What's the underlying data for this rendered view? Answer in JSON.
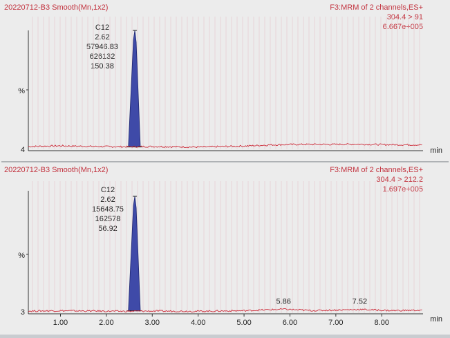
{
  "chart_data": [
    {
      "type": "line",
      "title": "20220712-B3 Smooth(Mn,1x2)",
      "channel": "F3:MRM of 2 channels,ES+",
      "transition": "304.4 > 91",
      "intensity": "6.667e+005",
      "ylabel": "%",
      "y_baseline_label": "4",
      "xlabel": "min",
      "xlim": [
        0.3,
        8.9
      ],
      "ylim": [
        0,
        100
      ],
      "peak": {
        "name": "C12",
        "rt": "2.62",
        "height": "57946.83",
        "area": "626132",
        "sn": "150.38",
        "x_start": 2.48,
        "x_apex": 2.62,
        "x_end": 2.74,
        "y_apex": 100
      },
      "baseline_points": [
        [
          0.3,
          1.2
        ],
        [
          1.0,
          1.8
        ],
        [
          1.8,
          1.2
        ],
        [
          2.4,
          1.0
        ],
        [
          3.0,
          1.2
        ],
        [
          4.0,
          0.7
        ],
        [
          5.0,
          1.6
        ],
        [
          5.6,
          2.6
        ],
        [
          6.2,
          3.0
        ],
        [
          7.0,
          3.0
        ],
        [
          7.5,
          3.2
        ],
        [
          8.0,
          2.8
        ],
        [
          8.9,
          2.6
        ]
      ],
      "extra_labels": [],
      "series_color": "#cc2a38",
      "peak_fill": "#3f4aa8"
    },
    {
      "type": "line",
      "title": "20220712-B3 Smooth(Mn,1x2)",
      "channel": "F3:MRM of 2 channels,ES+",
      "transition": "304.4 > 212.2",
      "intensity": "1.697e+005",
      "ylabel": "%",
      "y_baseline_label": "3",
      "xlabel": "min",
      "xlim": [
        0.3,
        8.9
      ],
      "ylim": [
        0,
        100
      ],
      "peak": {
        "name": "C12",
        "rt": "2.62",
        "height": "15648.75",
        "area": "162578",
        "sn": "56.92",
        "x_start": 2.48,
        "x_apex": 2.62,
        "x_end": 2.74,
        "y_apex": 100
      },
      "baseline_points": [
        [
          0.3,
          0.6
        ],
        [
          1.0,
          0.9
        ],
        [
          2.0,
          0.5
        ],
        [
          2.4,
          0.4
        ],
        [
          3.0,
          0.6
        ],
        [
          4.0,
          0.4
        ],
        [
          5.0,
          0.9
        ],
        [
          5.86,
          2.2
        ],
        [
          6.5,
          1.0
        ],
        [
          7.52,
          2.0
        ],
        [
          8.2,
          1.0
        ],
        [
          8.9,
          1.3
        ]
      ],
      "extra_labels": [
        {
          "x": 5.86,
          "text": "5.86"
        },
        {
          "x": 7.52,
          "text": "7.52"
        }
      ],
      "x_ticks": [
        "1.00",
        "2.00",
        "3.00",
        "4.00",
        "5.00",
        "6.00",
        "7.00",
        "8.00"
      ],
      "x_tick_values": [
        1,
        2,
        3,
        4,
        5,
        6,
        7,
        8
      ],
      "series_color": "#cc2a38",
      "peak_fill": "#3f4aa8"
    }
  ]
}
